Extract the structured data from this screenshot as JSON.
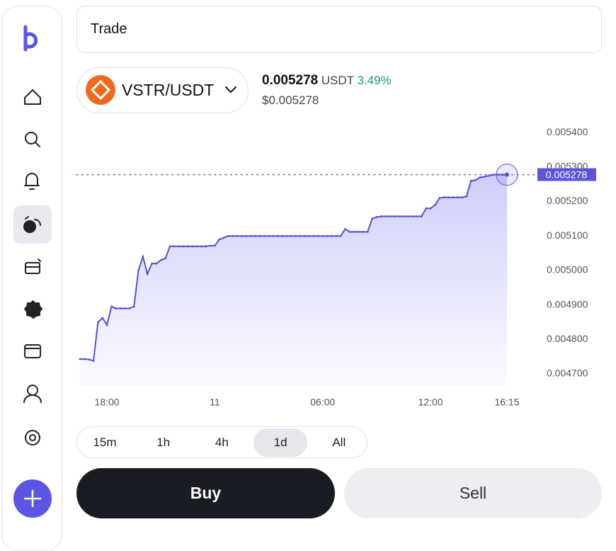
{
  "header": {
    "title": "Trade"
  },
  "pair": {
    "name": "VSTR/USDT",
    "price": "0.005278",
    "quote": "USDT",
    "change": "3.49%",
    "usd_price": "$0.005278"
  },
  "chart_data": {
    "type": "line",
    "color": "#5552d6",
    "categories": [
      null,
      null,
      null,
      null,
      null,
      null,
      "18:00",
      null,
      null,
      null,
      null,
      null,
      null,
      null,
      null,
      null,
      null,
      null,
      null,
      null,
      null,
      null,
      null,
      null,
      null,
      null,
      null,
      null,
      null,
      null,
      "11",
      null,
      null,
      null,
      null,
      null,
      null,
      null,
      null,
      null,
      null,
      null,
      null,
      null,
      null,
      null,
      null,
      null,
      null,
      null,
      null,
      null,
      null,
      null,
      "06:00",
      null,
      null,
      null,
      null,
      null,
      null,
      null,
      null,
      null,
      null,
      null,
      null,
      null,
      null,
      null,
      null,
      null,
      null,
      null,
      null,
      null,
      null,
      null,
      "12:00",
      null,
      null,
      null,
      null,
      null,
      null,
      null,
      null,
      null,
      null,
      null,
      null,
      null,
      null,
      null,
      null,
      "16:15"
    ],
    "values": [
      0.004743,
      0.004743,
      0.004742,
      0.004738,
      0.00485,
      0.004862,
      0.004842,
      0.004895,
      0.00489,
      0.00489,
      0.00489,
      0.00489,
      0.004895,
      0.005,
      0.00504,
      0.00499,
      0.00502,
      0.00502,
      0.00503,
      0.005035,
      0.00507,
      0.00507,
      0.00507,
      0.00507,
      0.00507,
      0.00507,
      0.00507,
      0.00507,
      0.00507,
      0.005072,
      0.005072,
      0.00509,
      0.005095,
      0.0051,
      0.0051,
      0.0051,
      0.0051,
      0.0051,
      0.0051,
      0.0051,
      0.0051,
      0.0051,
      0.0051,
      0.0051,
      0.0051,
      0.0051,
      0.0051,
      0.0051,
      0.0051,
      0.0051,
      0.0051,
      0.0051,
      0.0051,
      0.0051,
      0.0051,
      0.0051,
      0.0051,
      0.0051,
      0.0051,
      0.00512,
      0.005112,
      0.005112,
      0.005112,
      0.005112,
      0.005112,
      0.00515,
      0.005155,
      0.005157,
      0.005157,
      0.005157,
      0.005157,
      0.005157,
      0.005157,
      0.005157,
      0.005157,
      0.005157,
      0.005157,
      0.00518,
      0.00518,
      0.00519,
      0.00521,
      0.005212,
      0.005212,
      0.005212,
      0.005212,
      0.005212,
      0.005215,
      0.00526,
      0.005262,
      0.00527,
      0.005272,
      0.005275,
      0.005278,
      0.005278,
      0.005278,
      0.005278
    ],
    "ylim": [
      0.004665,
      0.005425
    ],
    "yticks": [
      {
        "value": 0.0047,
        "label": "0.004700"
      },
      {
        "value": 0.0048,
        "label": "0.004800"
      },
      {
        "value": 0.0049,
        "label": "0.004900"
      },
      {
        "value": 0.005,
        "label": "0.005000"
      },
      {
        "value": 0.0051,
        "label": "0.005100"
      },
      {
        "value": 0.0052,
        "label": "0.005200"
      },
      {
        "value": 0.0053,
        "label": "0.005300"
      },
      {
        "value": 0.0054,
        "label": "0.005400"
      }
    ]
  },
  "timeframes": {
    "options": [
      "15m",
      "1h",
      "4h",
      "1d",
      "All"
    ],
    "selected": "1d"
  },
  "actions": {
    "buy": "Buy",
    "sell": "Sell"
  }
}
